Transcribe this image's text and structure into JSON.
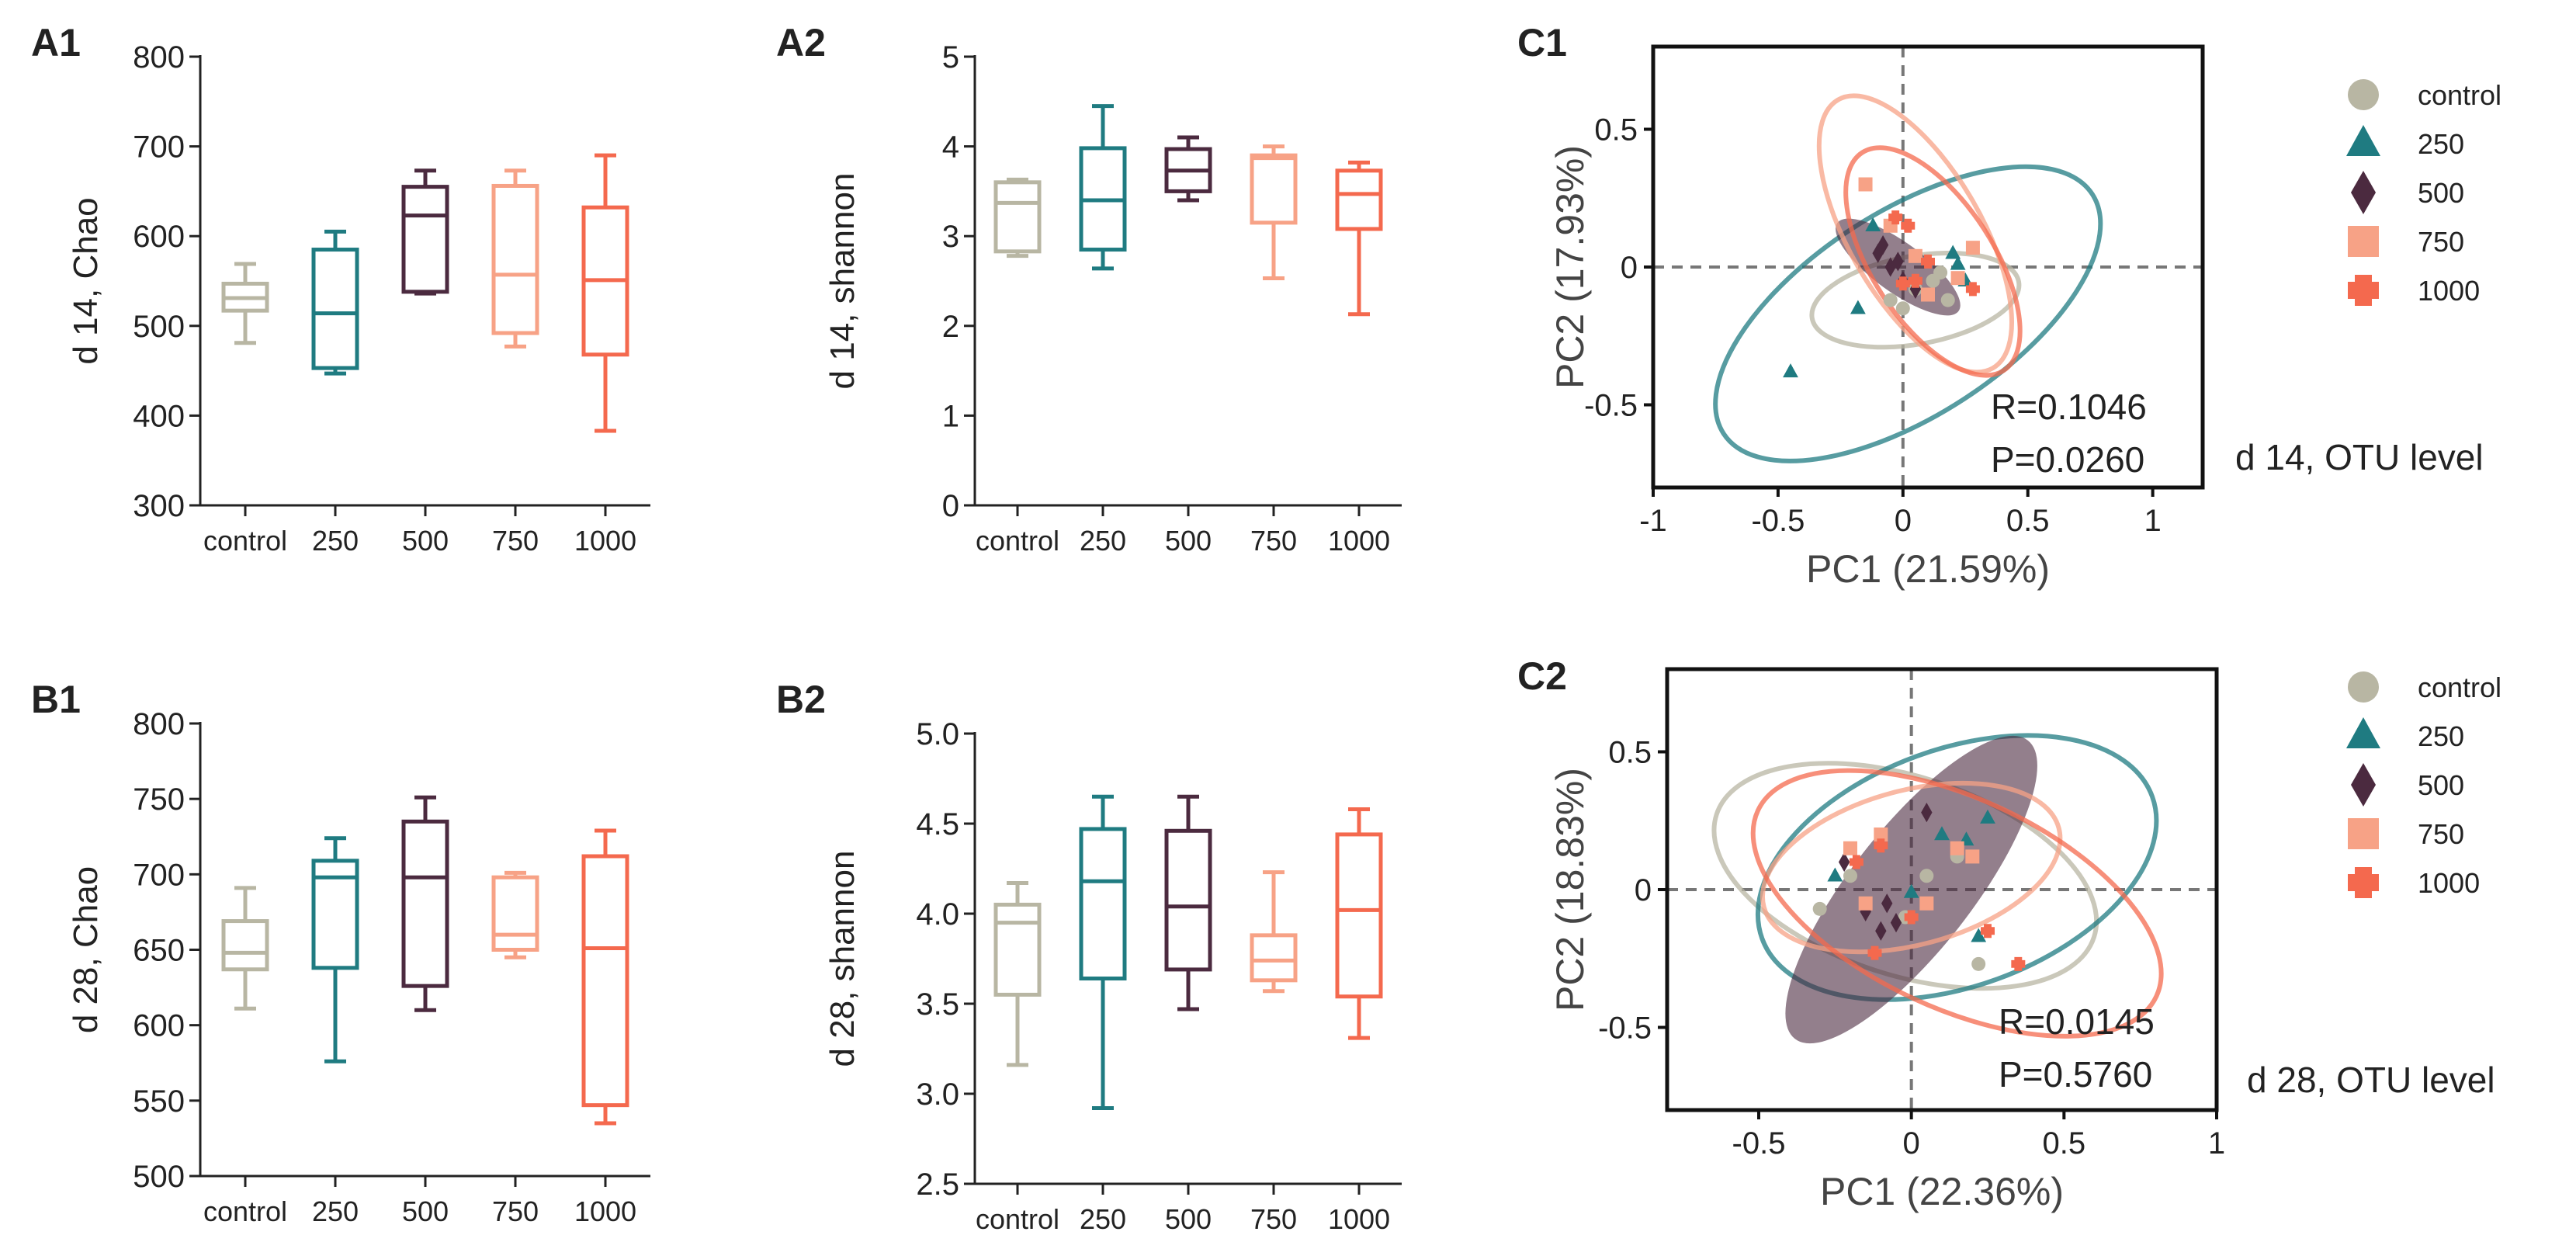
{
  "figure": {
    "colors": {
      "control": "#b8b6a3",
      "g250": "#1f7b81",
      "g500": "#4b2a3f",
      "g750": "#f7a286",
      "g1000": "#f4694e"
    },
    "groups": [
      "control",
      "250",
      "500",
      "750",
      "1000"
    ],
    "group_keys": [
      "control",
      "g250",
      "g500",
      "g750",
      "g1000"
    ],
    "marker_icons": [
      "circle-icon",
      "triangle-icon",
      "diamond-icon",
      "square-icon",
      "plus-icon"
    ]
  },
  "chart_data": [
    {
      "id": "A1",
      "panel_label": "A1",
      "type": "box",
      "ylabel": "d 14, Chao",
      "ylim": [
        300,
        800
      ],
      "yticks": [
        "300",
        "400",
        "500",
        "600",
        "700",
        "800"
      ],
      "categories": [
        "control",
        "250",
        "500",
        "750",
        "1000"
      ],
      "boxes": [
        {
          "min": 481,
          "q1": 517,
          "median": 531,
          "q3": 547,
          "max": 569
        },
        {
          "min": 447,
          "q1": 453,
          "median": 514,
          "q3": 585,
          "max": 605
        },
        {
          "min": 536,
          "q1": 538,
          "median": 623,
          "q3": 655,
          "max": 673
        },
        {
          "min": 477,
          "q1": 492,
          "median": 557,
          "q3": 656,
          "max": 673
        },
        {
          "min": 383,
          "q1": 468,
          "median": 551,
          "q3": 632,
          "max": 690
        }
      ]
    },
    {
      "id": "A2",
      "panel_label": "A2",
      "type": "box",
      "ylabel": "d 14, shannon",
      "ylim": [
        0,
        5
      ],
      "yticks": [
        "0",
        "1",
        "2",
        "3",
        "4",
        "5"
      ],
      "categories": [
        "control",
        "250",
        "500",
        "750",
        "1000"
      ],
      "boxes": [
        {
          "min": 2.78,
          "q1": 2.83,
          "median": 3.37,
          "q3": 3.6,
          "max": 3.63
        },
        {
          "min": 2.64,
          "q1": 2.85,
          "median": 3.4,
          "q3": 3.98,
          "max": 4.45
        },
        {
          "min": 3.4,
          "q1": 3.5,
          "median": 3.73,
          "q3": 3.97,
          "max": 4.1
        },
        {
          "min": 2.53,
          "q1": 3.15,
          "median": 3.87,
          "q3": 3.9,
          "max": 4.0
        },
        {
          "min": 2.13,
          "q1": 3.08,
          "median": 3.47,
          "q3": 3.73,
          "max": 3.82
        }
      ]
    },
    {
      "id": "B1",
      "panel_label": "B1",
      "type": "box",
      "ylabel": "d 28, Chao",
      "ylim": [
        500,
        800
      ],
      "yticks": [
        "500",
        "550",
        "600",
        "650",
        "700",
        "750",
        "800"
      ],
      "categories": [
        "control",
        "250",
        "500",
        "750",
        "1000"
      ],
      "boxes": [
        {
          "min": 611,
          "q1": 637,
          "median": 648,
          "q3": 669,
          "max": 691
        },
        {
          "min": 576,
          "q1": 638,
          "median": 698,
          "q3": 709,
          "max": 724
        },
        {
          "min": 610,
          "q1": 626,
          "median": 698,
          "q3": 735,
          "max": 751
        },
        {
          "min": 645,
          "q1": 650,
          "median": 660,
          "q3": 698,
          "max": 701
        },
        {
          "min": 535,
          "q1": 547,
          "median": 651,
          "q3": 712,
          "max": 729
        }
      ]
    },
    {
      "id": "B2",
      "panel_label": "B2",
      "type": "box",
      "ylabel": "d 28, shannon",
      "ylim": [
        2.5,
        5.0
      ],
      "yticks": [
        "2.5",
        "3.0",
        "3.5",
        "4.0",
        "4.5",
        "5.0"
      ],
      "categories": [
        "control",
        "250",
        "500",
        "750",
        "1000"
      ],
      "boxes": [
        {
          "min": 3.16,
          "q1": 3.55,
          "median": 3.95,
          "q3": 4.05,
          "max": 4.17
        },
        {
          "min": 2.92,
          "q1": 3.64,
          "median": 4.18,
          "q3": 4.47,
          "max": 4.65
        },
        {
          "min": 3.47,
          "q1": 3.69,
          "median": 4.04,
          "q3": 4.46,
          "max": 4.65
        },
        {
          "min": 3.57,
          "q1": 3.63,
          "median": 3.74,
          "q3": 3.88,
          "max": 4.23
        },
        {
          "min": 3.31,
          "q1": 3.54,
          "median": 4.02,
          "q3": 4.44,
          "max": 4.58
        }
      ]
    },
    {
      "id": "C1",
      "panel_label": "C1",
      "type": "scatter",
      "xlabel": "PC1 (21.59%)",
      "ylabel": "PC2 (17.93%)",
      "xlim": [
        -1,
        1.2
      ],
      "ylim": [
        -0.8,
        0.8
      ],
      "xticks": [
        -1,
        -0.5,
        0,
        0.5,
        1
      ],
      "xtick_labels": [
        "-1",
        "-0.5",
        "0",
        "0.5",
        "1"
      ],
      "yticks": [
        -0.5,
        0,
        0.5
      ],
      "ytick_labels": [
        "-0.5",
        "0",
        "0.5"
      ],
      "R": "R=0.1046",
      "P": "P=0.0260",
      "level_label": "d 14, OTU level",
      "legend": [
        "control",
        "250",
        "500",
        "750",
        "1000"
      ],
      "ellipses": [
        {
          "group": "control",
          "cx": 0.05,
          "cy": -0.12,
          "rx": 0.42,
          "ry": 0.16,
          "angle": 10,
          "filled": false
        },
        {
          "group": "250",
          "cx": 0.02,
          "cy": -0.17,
          "rx": 0.88,
          "ry": 0.37,
          "angle": 33,
          "filled": false
        },
        {
          "group": "500",
          "cx": -0.02,
          "cy": 0.0,
          "rx": 0.3,
          "ry": 0.09,
          "angle": -36,
          "filled": true
        },
        {
          "group": "750",
          "cx": 0.05,
          "cy": 0.12,
          "rx": 0.62,
          "ry": 0.24,
          "angle": -60,
          "filled": false
        },
        {
          "group": "1000",
          "cx": 0.12,
          "cy": 0.02,
          "rx": 0.52,
          "ry": 0.22,
          "angle": -57,
          "filled": false
        }
      ],
      "points": {
        "control": [
          [
            0.0,
            -0.15
          ],
          [
            0.12,
            -0.05
          ],
          [
            0.18,
            -0.12
          ],
          [
            0.05,
            -0.08
          ],
          [
            0.15,
            -0.02
          ],
          [
            -0.05,
            -0.12
          ]
        ],
        "250": [
          [
            -0.45,
            -0.38
          ],
          [
            -0.18,
            -0.15
          ],
          [
            0.22,
            0.01
          ],
          [
            -0.12,
            0.15
          ],
          [
            0.2,
            0.05
          ],
          [
            0.25,
            -0.05
          ]
        ],
        "500": [
          [
            -0.1,
            0.05
          ],
          [
            -0.05,
            0.0
          ],
          [
            0.0,
            -0.05
          ],
          [
            -0.08,
            0.08
          ],
          [
            0.05,
            -0.08
          ],
          [
            -0.02,
            0.02
          ]
        ],
        "750": [
          [
            -0.15,
            0.3
          ],
          [
            -0.05,
            0.15
          ],
          [
            0.28,
            0.07
          ],
          [
            0.22,
            -0.04
          ],
          [
            0.1,
            -0.1
          ],
          [
            0.05,
            0.04
          ]
        ],
        "1000": [
          [
            -0.03,
            0.18
          ],
          [
            0.02,
            0.15
          ],
          [
            0.05,
            -0.05
          ],
          [
            0.28,
            -0.08
          ],
          [
            0.1,
            0.02
          ],
          [
            0.0,
            -0.06
          ]
        ]
      }
    },
    {
      "id": "C2",
      "panel_label": "C2",
      "type": "scatter",
      "xlabel": "PC1 (22.36%)",
      "ylabel": "PC2 (18.83%)",
      "xlim": [
        -0.8,
        1.0
      ],
      "ylim": [
        -0.8,
        0.8
      ],
      "xticks": [
        -0.5,
        0,
        0.5,
        1
      ],
      "xtick_labels": [
        "-0.5",
        "0",
        "0.5",
        "1"
      ],
      "yticks": [
        -0.5,
        0,
        0.5
      ],
      "ytick_labels": [
        "-0.5",
        "0",
        "0.5"
      ],
      "R": "R=0.0145",
      "P": "P=0.5760",
      "level_label": "d 28, OTU level",
      "legend": [
        "control",
        "250",
        "500",
        "750",
        "1000"
      ],
      "ellipses": [
        {
          "group": "control",
          "cx": -0.02,
          "cy": 0.05,
          "rx": 0.65,
          "ry": 0.36,
          "angle": -18,
          "filled": false
        },
        {
          "group": "250",
          "cx": 0.15,
          "cy": 0.08,
          "rx": 0.68,
          "ry": 0.43,
          "angle": 20,
          "filled": false
        },
        {
          "group": "500",
          "cx": 0.0,
          "cy": 0.0,
          "rx": 0.62,
          "ry": 0.22,
          "angle": 52,
          "filled": true
        },
        {
          "group": "750",
          "cx": 0.0,
          "cy": 0.08,
          "rx": 0.5,
          "ry": 0.28,
          "angle": 15,
          "filled": false
        },
        {
          "group": "1000",
          "cx": 0.15,
          "cy": -0.05,
          "rx": 0.72,
          "ry": 0.38,
          "angle": -25,
          "filled": false
        }
      ],
      "points": {
        "control": [
          [
            -0.3,
            -0.07
          ],
          [
            -0.02,
            -0.1
          ],
          [
            0.22,
            -0.27
          ],
          [
            -0.2,
            0.05
          ],
          [
            0.05,
            0.05
          ],
          [
            0.15,
            0.12
          ]
        ],
        "250": [
          [
            -0.25,
            0.05
          ],
          [
            0.18,
            0.18
          ],
          [
            0.22,
            -0.17
          ],
          [
            0.25,
            0.26
          ],
          [
            0.1,
            0.2
          ],
          [
            0.0,
            -0.01
          ]
        ],
        "500": [
          [
            -0.15,
            -0.08
          ],
          [
            -0.05,
            -0.12
          ],
          [
            -0.1,
            -0.15
          ],
          [
            0.05,
            0.28
          ],
          [
            -0.22,
            0.1
          ],
          [
            -0.08,
            -0.05
          ]
        ],
        "750": [
          [
            -0.2,
            0.15
          ],
          [
            -0.1,
            0.2
          ],
          [
            0.15,
            0.15
          ],
          [
            -0.15,
            -0.05
          ],
          [
            0.2,
            0.12
          ],
          [
            0.05,
            -0.05
          ]
        ],
        "1000": [
          [
            -0.12,
            -0.23
          ],
          [
            -0.1,
            0.16
          ],
          [
            0.25,
            -0.15
          ],
          [
            0.35,
            -0.27
          ],
          [
            -0.18,
            0.1
          ],
          [
            0.0,
            -0.1
          ]
        ]
      }
    }
  ]
}
